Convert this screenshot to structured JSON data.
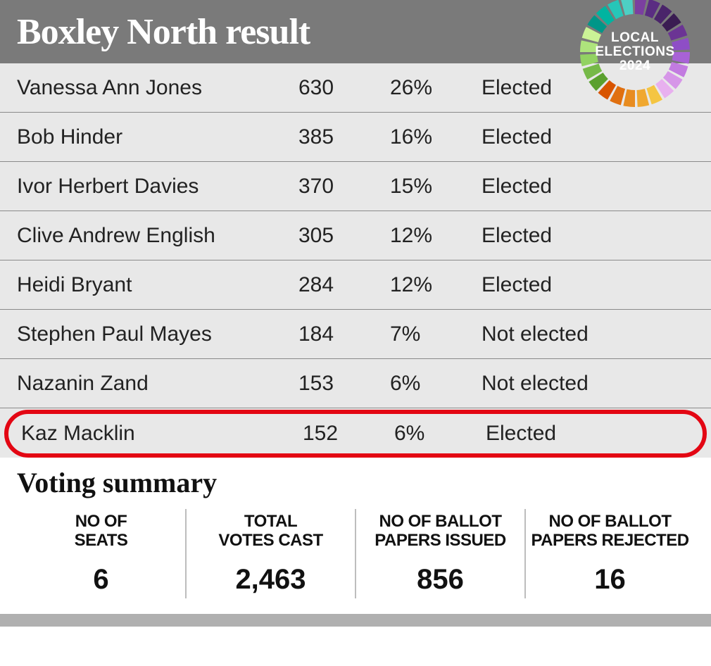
{
  "header": {
    "title": "Boxley North result",
    "badge_line1": "LOCAL",
    "badge_line2": "ELECTIONS",
    "badge_line3": "2024",
    "badge_colors": [
      "#7b3fa0",
      "#5a2d82",
      "#4a246a",
      "#3a1c52",
      "#6b3494",
      "#8e4ec6",
      "#a862d6",
      "#c27be0",
      "#d696e8",
      "#e8b0ef",
      "#f4c542",
      "#f0a830",
      "#e88c20",
      "#e07010",
      "#d85400",
      "#5aa02e",
      "#76b948",
      "#92d262",
      "#aee47c",
      "#cbf396",
      "#009688",
      "#00b4a0",
      "#26c6b8",
      "#4dd0c4"
    ]
  },
  "rows": [
    {
      "name": "Vanessa Ann Jones",
      "votes": "630",
      "pct": "26%",
      "status": "Elected",
      "highlight": false
    },
    {
      "name": "Bob Hinder",
      "votes": "385",
      "pct": "16%",
      "status": "Elected",
      "highlight": false
    },
    {
      "name": "Ivor Herbert Davies",
      "votes": "370",
      "pct": "15%",
      "status": "Elected",
      "highlight": false
    },
    {
      "name": "Clive Andrew English",
      "votes": "305",
      "pct": "12%",
      "status": "Elected",
      "highlight": false
    },
    {
      "name": "Heidi Bryant",
      "votes": "284",
      "pct": "12%",
      "status": "Elected",
      "highlight": false
    },
    {
      "name": "Stephen Paul Mayes",
      "votes": "184",
      "pct": "7%",
      "status": "Not elected",
      "highlight": false
    },
    {
      "name": "Nazanin Zand",
      "votes": "153",
      "pct": "6%",
      "status": "Not elected",
      "highlight": false
    },
    {
      "name": "Kaz Macklin",
      "votes": "152",
      "pct": "6%",
      "status": "Elected",
      "highlight": true
    }
  ],
  "summary": {
    "title": "Voting summary",
    "items": [
      {
        "label": "NO OF\nSEATS",
        "value": "6"
      },
      {
        "label": "TOTAL\nVOTES CAST",
        "value": "2,463"
      },
      {
        "label": "NO OF BALLOT\nPAPERS ISSUED",
        "value": "856"
      },
      {
        "label": "NO OF BALLOT\nPAPERS REJECTED",
        "value": "16"
      }
    ]
  },
  "highlight_color": "#e30613"
}
